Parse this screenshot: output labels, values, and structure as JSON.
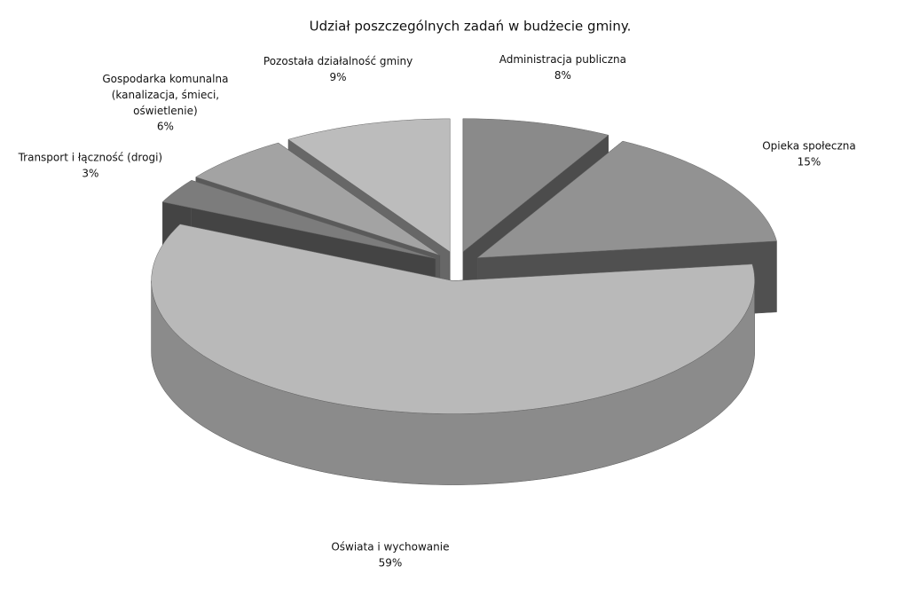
{
  "chart_data": {
    "type": "pie3d",
    "title": "Udział poszczególnych zadań  w budżecie gminy.",
    "categories": [
      "Administracja publiczna",
      "Opieka społeczna",
      "Oświata i wychowanie",
      "Transport i łączność (drogi)",
      "Gospodarka komunalna (kanalizacja, śmieci, oświetlenie)",
      "Pozostała działalność gminy"
    ],
    "values": [
      8,
      15,
      59,
      3,
      6,
      9
    ],
    "value_labels": [
      "8%",
      "15%",
      "59%",
      "3%",
      "6%",
      "9%"
    ],
    "colors": [
      "#8a8a8a",
      "#929292",
      "#b9b9b9",
      "#7c7c7c",
      "#a3a3a3",
      "#bcbcbc"
    ]
  }
}
